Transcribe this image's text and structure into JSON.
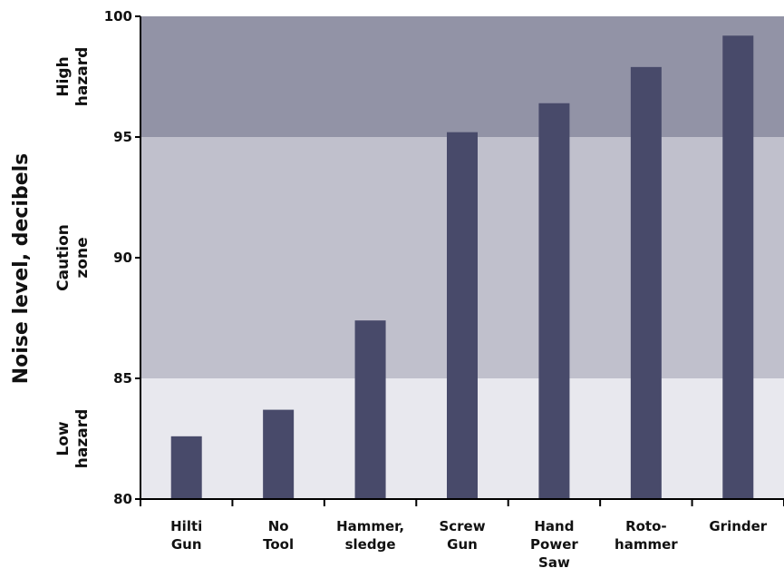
{
  "chart_data": {
    "type": "bar",
    "ylabel": "Noise level, decibels",
    "ylim": [
      80,
      100
    ],
    "yticks": [
      80,
      85,
      90,
      95,
      100
    ],
    "grid": false,
    "categories": [
      [
        "Hilti",
        "Gun"
      ],
      [
        "No",
        "Tool"
      ],
      [
        "Hammer,",
        "sledge"
      ],
      [
        "Screw",
        "Gun"
      ],
      [
        "Hand",
        "Power",
        "Saw"
      ],
      [
        "Roto-",
        "hammer"
      ],
      [
        "Grinder"
      ]
    ],
    "values": [
      82.6,
      83.7,
      87.4,
      95.2,
      96.4,
      97.9,
      99.2
    ],
    "bar_color": "#484a6a",
    "zones": [
      {
        "label": [
          "Low",
          "hazard"
        ],
        "from": 80,
        "to": 85,
        "color": "#e8e8ee"
      },
      {
        "label": [
          "Caution",
          "zone"
        ],
        "from": 85,
        "to": 95,
        "color": "#c0c0cc"
      },
      {
        "label": [
          "High",
          "hazard"
        ],
        "from": 95,
        "to": 100,
        "color": "#9293a6"
      }
    ]
  }
}
